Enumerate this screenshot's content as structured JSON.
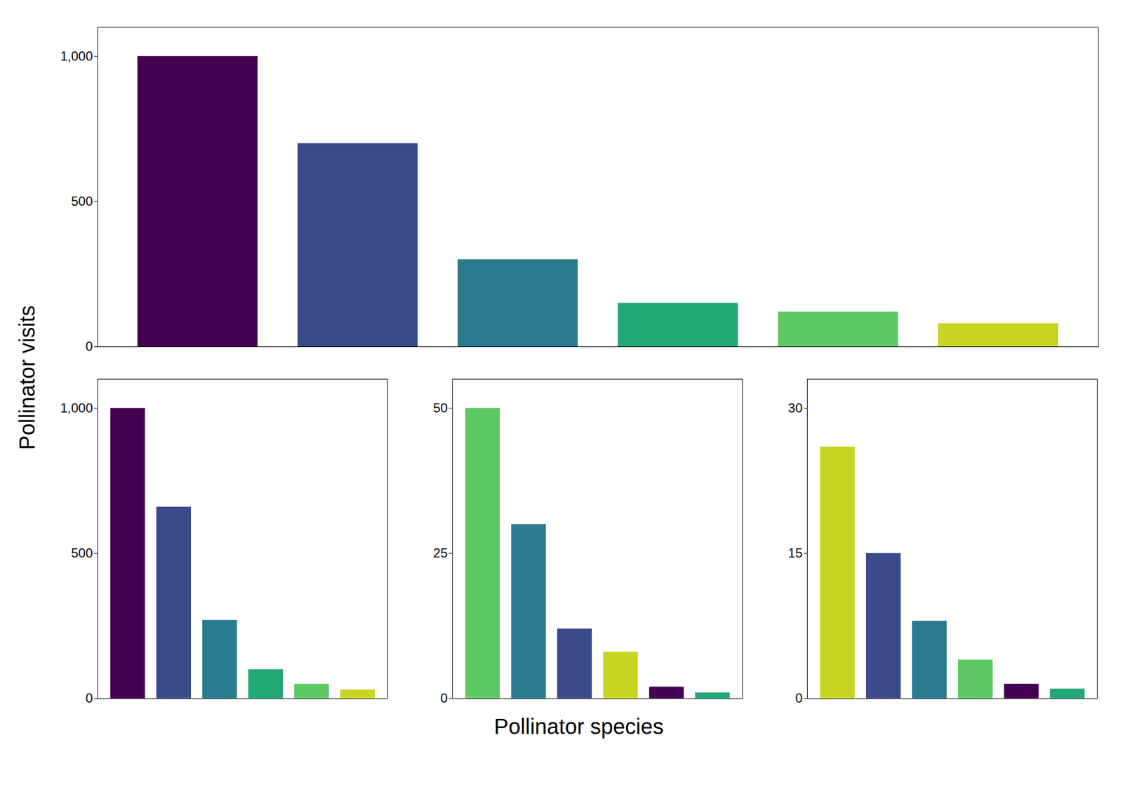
{
  "ylabel": "Pollinator visits",
  "xlabel": "Pollinator species",
  "chart_data": [
    {
      "type": "bar",
      "categories": [
        null,
        null,
        null,
        null,
        null,
        null
      ],
      "values": [
        1000,
        700,
        300,
        150,
        120,
        80
      ],
      "colors": [
        "#440154",
        "#3B4A8A",
        "#2A7B8E",
        "#22A775",
        "#5DC863",
        "#C8D422"
      ],
      "ylim": [
        0,
        1100
      ],
      "yticks": [
        0,
        500,
        1000
      ],
      "tick_labels": "y"
    },
    {
      "type": "bar",
      "categories": [
        null,
        null,
        null,
        null,
        null,
        null
      ],
      "values": [
        1000,
        660,
        270,
        100,
        50,
        30
      ],
      "colors": [
        "#440154",
        "#3B4A8A",
        "#2A7B8E",
        "#22A775",
        "#5DC863",
        "#C8D422"
      ],
      "ylim": [
        0,
        1100
      ],
      "yticks": [
        0,
        500,
        1000
      ],
      "tick_labels": "y"
    },
    {
      "type": "bar",
      "categories": [
        null,
        null,
        null,
        null,
        null,
        null
      ],
      "values": [
        50,
        30,
        12,
        8,
        2,
        1
      ],
      "colors": [
        "#5DC863",
        "#2A7B8E",
        "#3B4A8A",
        "#C8D422",
        "#440154",
        "#22A775"
      ],
      "ylim": [
        0,
        55
      ],
      "yticks": [
        0,
        25,
        50
      ],
      "tick_labels": "y"
    },
    {
      "type": "bar",
      "categories": [
        null,
        null,
        null,
        null,
        null,
        null
      ],
      "values": [
        26,
        15,
        8,
        4,
        1.5,
        1
      ],
      "colors": [
        "#C8D422",
        "#3B4A8A",
        "#2A7B8E",
        "#5DC863",
        "#440154",
        "#22A775"
      ],
      "ylim": [
        0,
        33
      ],
      "yticks": [
        0,
        15,
        30
      ],
      "tick_labels": "y"
    }
  ]
}
